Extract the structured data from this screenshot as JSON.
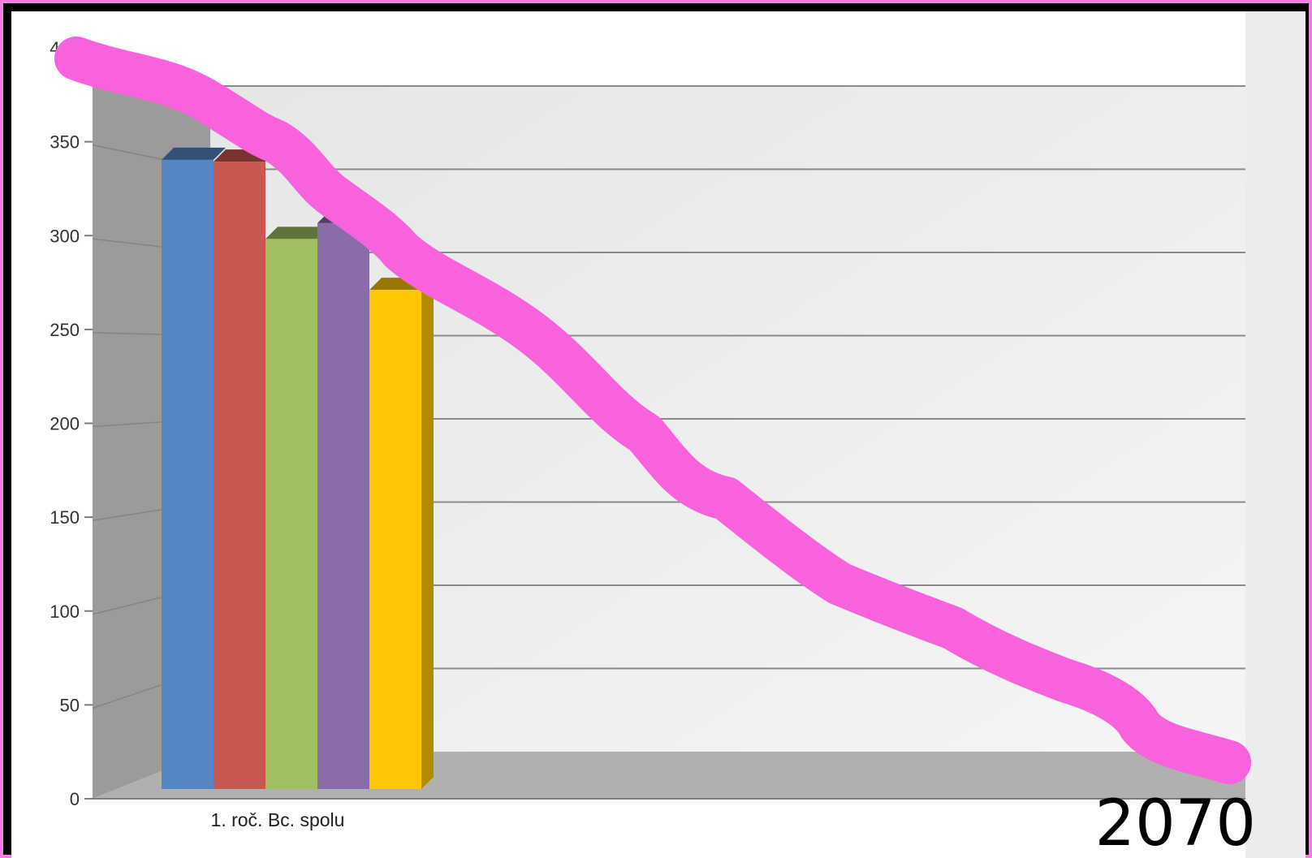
{
  "chart_data": {
    "type": "bar",
    "categories": [
      "1. roč. Bc. spolu"
    ],
    "series": [
      {
        "values": [
          358
        ],
        "color": "#5585c5"
      },
      {
        "values": [
          357
        ],
        "color": "#c8574f"
      },
      {
        "values": [
          313
        ],
        "color": "#a0bf60"
      },
      {
        "values": [
          322
        ],
        "color": "#8a6da8"
      },
      {
        "values": [
          284
        ],
        "color": "#ffc700"
      }
    ],
    "title": "",
    "xlabel": "",
    "ylabel": "",
    "ylim": [
      0,
      400
    ],
    "yticks": [
      "0",
      "50",
      "100",
      "150",
      "200",
      "250",
      "300",
      "350",
      "400"
    ],
    "grid": true,
    "projection": "3d",
    "overlay": {
      "label": "2070",
      "stroke_color": "#f862dc",
      "trend": "declining"
    }
  }
}
